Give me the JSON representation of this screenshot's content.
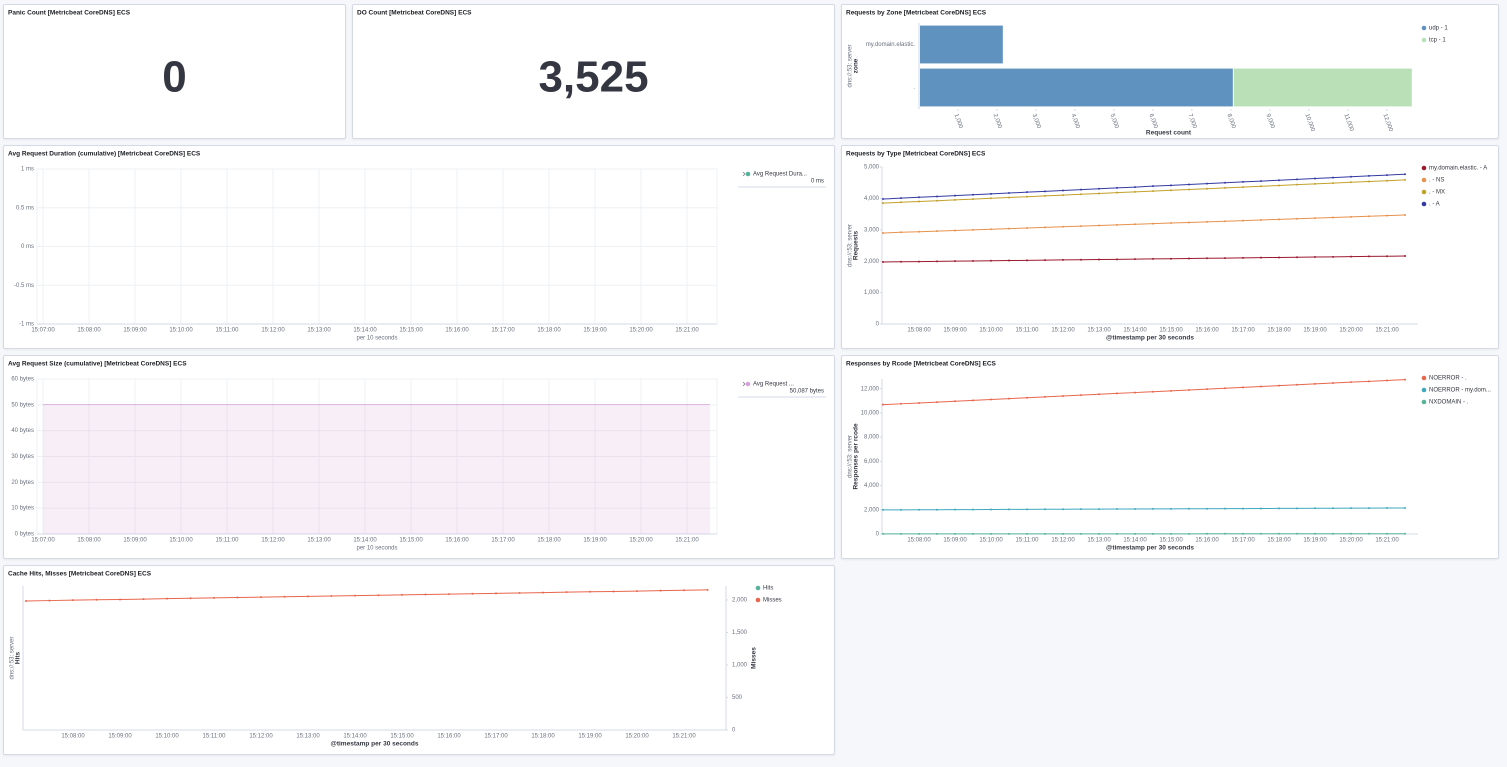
{
  "chart_data": [
    {
      "type": "metric",
      "title": "Panic Count [Metricbeat CoreDNS] ECS",
      "values": [
        0
      ]
    },
    {
      "type": "metric",
      "title": "DO Count [Metricbeat CoreDNS] ECS",
      "values": [
        3525
      ],
      "value_labels": [
        "3,525"
      ]
    },
    {
      "type": "hbar",
      "title": "Requests by Zone [Metricbeat CoreDNS] ECS",
      "stacked": true,
      "categories": [
        "my.domain.elastic.",
        "."
      ],
      "series": [
        {
          "name": "udp - 1",
          "color": "#6092c0",
          "values": [
            2150,
            8050
          ]
        },
        {
          "name": "tcp - 1",
          "color": "#b9e0b6",
          "values": [
            null,
            4590
          ]
        }
      ],
      "xlim": [
        0,
        12800
      ],
      "xticks": [
        {
          "value": 1000,
          "label": "1,000"
        },
        {
          "value": 2000,
          "label": "2,000"
        },
        {
          "value": 3000,
          "label": "3,000"
        },
        {
          "value": 4000,
          "label": "4,000"
        },
        {
          "value": 5000,
          "label": "5,000"
        },
        {
          "value": 6000,
          "label": "6,000"
        },
        {
          "value": 7000,
          "label": "7,000"
        },
        {
          "value": 8000,
          "label": "8,000"
        },
        {
          "value": 9000,
          "label": "9,000"
        },
        {
          "value": 10000,
          "label": "10,000"
        },
        {
          "value": 11000,
          "label": "11,000"
        },
        {
          "value": 12000,
          "label": "12,000"
        }
      ],
      "xlabel": "Request count",
      "y_group_label": "dns://:53: server",
      "ylabel": "zone"
    },
    {
      "type": "line",
      "title": "Avg Request Duration (cumulative) [Metricbeat CoreDNS] ECS",
      "grid": true,
      "categories": [
        "15:07:00",
        null,
        "15:08:00",
        null,
        "15:09:00",
        null,
        "15:10:00",
        null,
        "15:11:00",
        null,
        "15:12:00",
        null,
        "15:13:00",
        null,
        "15:14:00",
        null,
        "15:15:00",
        null,
        "15:16:00",
        null,
        "15:17:00",
        null,
        "15:18:00",
        null,
        "15:19:00",
        null,
        "15:20:00",
        null,
        "15:21:00",
        null
      ],
      "series": [
        {
          "name": "Avg Request Dura...",
          "color": "#54b399",
          "legend_value_label": "0 ms"
        }
      ],
      "ylim": [
        -1,
        1
      ],
      "yticks": [
        {
          "value": 1,
          "label": "1 ms"
        },
        {
          "value": 0.5,
          "label": "0.5 ms"
        },
        {
          "value": 0,
          "label": "0 ms"
        },
        {
          "value": -0.5,
          "label": "-0.5 ms"
        },
        {
          "value": -1,
          "label": "-1 ms"
        }
      ],
      "xlabel": "per 10 seconds"
    },
    {
      "type": "line",
      "title": "Requests by Type [Metricbeat CoreDNS] ECS",
      "grid": false,
      "categories": [
        null,
        null,
        "15:08:00",
        null,
        "15:09:00",
        null,
        "15:10:00",
        null,
        "15:11:00",
        null,
        "15:12:00",
        null,
        "15:13:00",
        null,
        "15:14:00",
        null,
        "15:15:00",
        null,
        "15:16:00",
        null,
        "15:17:00",
        null,
        "15:18:00",
        null,
        "15:19:00",
        null,
        "15:20:00",
        null,
        "15:21:00",
        null
      ],
      "series": [
        {
          "name": "my.domain.elastic. - A",
          "color": "#9b1b30",
          "values": [
            1975,
            1982,
            1988,
            1995,
            2001,
            2008,
            2014,
            2021,
            2027,
            2034,
            2041,
            2047,
            2054,
            2060,
            2067,
            2073,
            2080,
            2086,
            2093,
            2099,
            2106,
            2113,
            2119,
            2126,
            2132,
            2139,
            2145,
            2152,
            2158,
            2165
          ]
        },
        {
          "name": ". - NS",
          "color": "#e7924d",
          "values": [
            2900,
            2920,
            2939,
            2959,
            2979,
            2998,
            3018,
            3038,
            3057,
            3077,
            3097,
            3116,
            3136,
            3156,
            3175,
            3195,
            3215,
            3234,
            3254,
            3274,
            3293,
            3313,
            3333,
            3352,
            3372,
            3392,
            3411,
            3431,
            3451,
            3470
          ]
        },
        {
          "name": ". - MX",
          "color": "#c2a12a",
          "values": [
            3850,
            3876,
            3901,
            3927,
            3952,
            3978,
            4003,
            4029,
            4054,
            4080,
            4105,
            4131,
            4156,
            4182,
            4207,
            4233,
            4258,
            4284,
            4309,
            4335,
            4360,
            4386,
            4411,
            4437,
            4462,
            4488,
            4513,
            4539,
            4564,
            4590
          ]
        },
        {
          "name": ". - A",
          "color": "#343aa3",
          "values": [
            3980,
            4007,
            4035,
            4062,
            4089,
            4116,
            4144,
            4171,
            4198,
            4225,
            4252,
            4280,
            4307,
            4334,
            4361,
            4389,
            4416,
            4443,
            4470,
            4498,
            4525,
            4552,
            4579,
            4607,
            4634,
            4661,
            4688,
            4716,
            4743,
            4770
          ]
        }
      ],
      "ylim": [
        0,
        5000
      ],
      "yticks": [
        0,
        {
          "value": 1000,
          "label": "1,000"
        },
        {
          "value": 2000,
          "label": "2,000"
        },
        {
          "value": 3000,
          "label": "3,000"
        },
        {
          "value": 4000,
          "label": "4,000"
        },
        {
          "value": 5000,
          "label": "5,000"
        }
      ],
      "xlabel": "@timestamp per 30 seconds",
      "y_group_label": "dns://:53: server",
      "ylabel": "Requests"
    },
    {
      "type": "line",
      "title": "Avg Request Size (cumulative) [Metricbeat CoreDNS] ECS",
      "grid": true,
      "categories": [
        "15:07:00",
        null,
        "15:08:00",
        null,
        "15:09:00",
        null,
        "15:10:00",
        null,
        "15:11:00",
        null,
        "15:12:00",
        null,
        "15:13:00",
        null,
        "15:14:00",
        null,
        "15:15:00",
        null,
        "15:16:00",
        null,
        "15:17:00",
        null,
        "15:18:00",
        null,
        "15:19:00",
        null,
        "15:20:00",
        null,
        "15:21:00",
        null
      ],
      "series": [
        {
          "name": "Avg Request ...",
          "color": "#d6a3d9",
          "area": true,
          "legend_value_label": "50,087 bytes",
          "values": [
            50.087,
            50.087,
            50.087,
            50.087,
            50.087,
            50.087,
            50.087,
            50.087,
            50.087,
            50.087,
            50.087,
            50.087,
            50.087,
            50.087,
            50.087,
            50.087,
            50.087,
            50.087,
            50.087,
            50.087,
            50.087,
            50.087,
            50.087,
            50.087,
            50.087,
            50.087,
            50.087,
            50.087,
            50.087,
            50.087
          ]
        }
      ],
      "ylim": [
        0,
        60
      ],
      "yticks": [
        {
          "value": 60,
          "label": "60 bytes"
        },
        {
          "value": 50,
          "label": "50 bytes"
        },
        {
          "value": 40,
          "label": "40 bytes"
        },
        {
          "value": 30,
          "label": "30 bytes"
        },
        {
          "value": 20,
          "label": "20 bytes"
        },
        {
          "value": 10,
          "label": "10 bytes"
        },
        {
          "value": 0,
          "label": "0 bytes"
        }
      ],
      "xlabel": "per 10 seconds"
    },
    {
      "type": "line",
      "title": "Responses by Rcode [Metricbeat CoreDNS] ECS",
      "grid": false,
      "categories": [
        null,
        null,
        "15:08:00",
        null,
        "15:09:00",
        null,
        "15:10:00",
        null,
        "15:11:00",
        null,
        "15:12:00",
        null,
        "15:13:00",
        null,
        "15:14:00",
        null,
        "15:15:00",
        null,
        "15:16:00",
        null,
        "15:17:00",
        null,
        "15:18:00",
        null,
        "15:19:00",
        null,
        "15:20:00",
        null,
        "15:21:00",
        null
      ],
      "series": [
        {
          "name": "NOERROR - .",
          "color": "#e7664c",
          "values": [
            10680,
            10751,
            10823,
            10894,
            10966,
            11037,
            11108,
            11180,
            11251,
            11323,
            11394,
            11466,
            11537,
            11608,
            11680,
            11751,
            11823,
            11894,
            11966,
            12037,
            12108,
            12180,
            12251,
            12323,
            12394,
            12466,
            12537,
            12608,
            12680,
            12750
          ]
        },
        {
          "name": "NOERROR - my.dom...",
          "color": "#3fa8bd",
          "values": [
            1990,
            1996,
            2001,
            2007,
            2012,
            2018,
            2023,
            2029,
            2034,
            2040,
            2045,
            2051,
            2056,
            2062,
            2067,
            2073,
            2078,
            2084,
            2089,
            2095,
            2100,
            2106,
            2111,
            2117,
            2122,
            2128,
            2133,
            2139,
            2144,
            2150
          ]
        },
        {
          "name": "NXDOMAIN - .",
          "color": "#54b399",
          "values": [
            10,
            10,
            10,
            11,
            11,
            11,
            12,
            12,
            12,
            13,
            13,
            13,
            14,
            14,
            14,
            15,
            15,
            15,
            16,
            16,
            16,
            17,
            17,
            17,
            18,
            18,
            18,
            19,
            19,
            20
          ]
        }
      ],
      "ylim": [
        0,
        12800
      ],
      "yticks": [
        0,
        {
          "value": 2000,
          "label": "2,000"
        },
        {
          "value": 4000,
          "label": "4,000"
        },
        {
          "value": 6000,
          "label": "6,000"
        },
        {
          "value": 8000,
          "label": "8,000"
        },
        {
          "value": 10000,
          "label": "10,000"
        },
        {
          "value": 12000,
          "label": "12,000"
        }
      ],
      "xlabel": "@timestamp per 30 seconds",
      "y_group_label": "dns://:53: server",
      "ylabel": "Responses per rcode"
    },
    {
      "type": "line",
      "title": "Cache Hits, Misses [Metricbeat CoreDNS] ECS",
      "grid": false,
      "categories": [
        null,
        null,
        "15:08:00",
        null,
        "15:09:00",
        null,
        "15:10:00",
        null,
        "15:11:00",
        null,
        "15:12:00",
        null,
        "15:13:00",
        null,
        "15:14:00",
        null,
        "15:15:00",
        null,
        "15:16:00",
        null,
        "15:17:00",
        null,
        "15:18:00",
        null,
        "15:19:00",
        null,
        "15:20:00",
        null,
        "15:21:00",
        null
      ],
      "series": [
        {
          "name": "Hits",
          "color": "#54b399",
          "values": [
            null,
            null,
            null,
            null,
            null,
            null,
            null,
            null,
            null,
            null,
            null,
            null,
            null,
            null,
            null,
            null,
            null,
            null,
            null,
            null,
            null,
            null,
            null,
            null,
            null,
            null,
            null,
            null,
            null,
            null
          ]
        },
        {
          "name": "Misses",
          "color": "#e7664c",
          "axis": "y2",
          "values": [
            1985,
            1991,
            1997,
            2003,
            2008,
            2014,
            2020,
            2026,
            2032,
            2038,
            2044,
            2049,
            2055,
            2061,
            2067,
            2073,
            2079,
            2085,
            2090,
            2096,
            2102,
            2108,
            2114,
            2120,
            2126,
            2131,
            2137,
            2143,
            2149,
            2155
          ]
        }
      ],
      "y2lim": [
        0,
        2215
      ],
      "y2ticks": [
        0,
        500,
        {
          "value": 1000,
          "label": "1,000"
        },
        {
          "value": 1500,
          "label": "1,500"
        },
        {
          "value": 2000,
          "label": "2,000"
        }
      ],
      "xlabel": "@timestamp per 30 seconds",
      "y_group_label": "dns://:53: server",
      "ylabel": "Hits",
      "y2label": "Misses"
    }
  ]
}
